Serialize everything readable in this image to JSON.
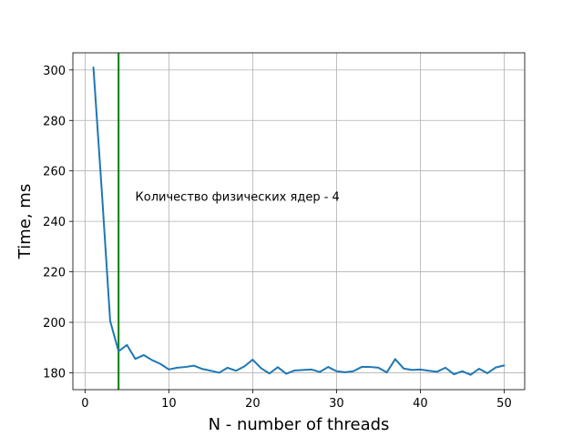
{
  "chart_data": {
    "type": "line",
    "title": "",
    "xlabel": "N - number of threads",
    "ylabel": "Time, ms",
    "xlim": [
      -1.45,
      52.45
    ],
    "ylim": [
      173.3,
      306.8
    ],
    "xticks": [
      0,
      10,
      20,
      30,
      40,
      50
    ],
    "yticks": [
      180,
      200,
      220,
      240,
      260,
      280,
      300
    ],
    "grid": true,
    "legend": "none",
    "series": [
      {
        "color": "#1f77b4",
        "x": [
          1,
          2,
          3,
          4,
          5,
          6,
          7,
          8,
          9,
          10,
          11,
          12,
          13,
          14,
          15,
          16,
          17,
          18,
          19,
          20,
          21,
          22,
          23,
          24,
          25,
          26,
          27,
          28,
          29,
          30,
          31,
          32,
          33,
          34,
          35,
          36,
          37,
          38,
          39,
          40,
          41,
          42,
          43,
          44,
          45,
          46,
          47,
          48,
          49,
          50
        ],
        "y": [
          301,
          252,
          200.5,
          188.5,
          191,
          185.5,
          187,
          185,
          183.5,
          181.3,
          182,
          182.3,
          182.8,
          181.5,
          180.8,
          180,
          182,
          180.8,
          182.5,
          185.2,
          181.8,
          179.7,
          182.2,
          179.6,
          180.9,
          181.1,
          181.3,
          180.3,
          182.3,
          180.6,
          180.2,
          180.6,
          182.3,
          182.3,
          182,
          180.1,
          185.4,
          181.7,
          181.1,
          181.3,
          180.8,
          180.4,
          182,
          179.4,
          180.6,
          179.2,
          181.6,
          179.8,
          182.1,
          182.9
        ]
      }
    ],
    "vline": {
      "x": 4,
      "color": "#008000"
    },
    "annotations": [
      {
        "text": "Количество физических ядер - 4",
        "x": 6,
        "y": 250
      }
    ]
  }
}
